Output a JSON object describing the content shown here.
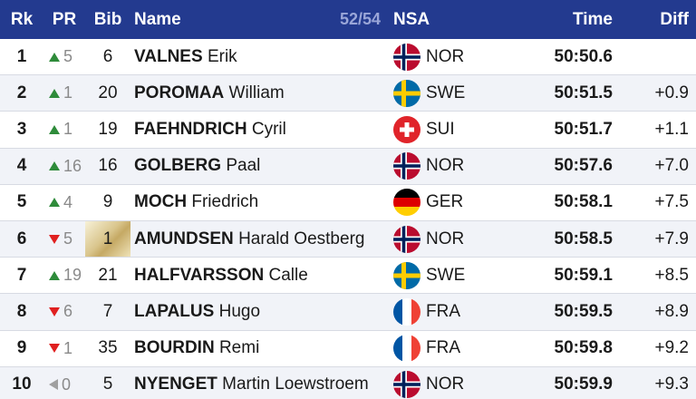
{
  "header": {
    "rank": "Rk",
    "pr": "PR",
    "bib": "Bib",
    "name": "Name",
    "counter": "52/54",
    "nsa": "NSA",
    "time": "Time",
    "diff": "Diff"
  },
  "colors": {
    "header_bg": "#233a8f",
    "up": "#2e8b3a",
    "down": "#e02020",
    "same": "#a0a0a0"
  },
  "rows": [
    {
      "rank": "1",
      "trend": "up",
      "pr": "5",
      "bib": "6",
      "surname": "VALNES",
      "firstname": "Erik",
      "nsa": "NOR",
      "flag": "norway-flag",
      "time": "50:50.6",
      "diff": "",
      "bib_leader": false
    },
    {
      "rank": "2",
      "trend": "up",
      "pr": "1",
      "bib": "20",
      "surname": "POROMAA",
      "firstname": "William",
      "nsa": "SWE",
      "flag": "sweden-flag",
      "time": "50:51.5",
      "diff": "+0.9",
      "bib_leader": false
    },
    {
      "rank": "3",
      "trend": "up",
      "pr": "1",
      "bib": "19",
      "surname": "FAEHNDRICH",
      "firstname": "Cyril",
      "nsa": "SUI",
      "flag": "switzerland-flag",
      "time": "50:51.7",
      "diff": "+1.1",
      "bib_leader": false
    },
    {
      "rank": "4",
      "trend": "up",
      "pr": "16",
      "bib": "16",
      "surname": "GOLBERG",
      "firstname": "Paal",
      "nsa": "NOR",
      "flag": "norway-flag",
      "time": "50:57.6",
      "diff": "+7.0",
      "bib_leader": false
    },
    {
      "rank": "5",
      "trend": "up",
      "pr": "4",
      "bib": "9",
      "surname": "MOCH",
      "firstname": "Friedrich",
      "nsa": "GER",
      "flag": "germany-flag",
      "time": "50:58.1",
      "diff": "+7.5",
      "bib_leader": false
    },
    {
      "rank": "6",
      "trend": "down",
      "pr": "5",
      "bib": "1",
      "surname": "AMUNDSEN",
      "firstname": "Harald Oestberg",
      "nsa": "NOR",
      "flag": "norway-flag",
      "time": "50:58.5",
      "diff": "+7.9",
      "bib_leader": true
    },
    {
      "rank": "7",
      "trend": "up",
      "pr": "19",
      "bib": "21",
      "surname": "HALFVARSSON",
      "firstname": "Calle",
      "nsa": "SWE",
      "flag": "sweden-flag",
      "time": "50:59.1",
      "diff": "+8.5",
      "bib_leader": false
    },
    {
      "rank": "8",
      "trend": "down",
      "pr": "6",
      "bib": "7",
      "surname": "LAPALUS",
      "firstname": "Hugo",
      "nsa": "FRA",
      "flag": "france-flag",
      "time": "50:59.5",
      "diff": "+8.9",
      "bib_leader": false
    },
    {
      "rank": "9",
      "trend": "down",
      "pr": "1",
      "bib": "35",
      "surname": "BOURDIN",
      "firstname": "Remi",
      "nsa": "FRA",
      "flag": "france-flag",
      "time": "50:59.8",
      "diff": "+9.2",
      "bib_leader": false
    },
    {
      "rank": "10",
      "trend": "same",
      "pr": "0",
      "bib": "5",
      "surname": "NYENGET",
      "firstname": "Martin Loewstroem",
      "nsa": "NOR",
      "flag": "norway-flag",
      "time": "50:59.9",
      "diff": "+9.3",
      "bib_leader": false
    }
  ]
}
